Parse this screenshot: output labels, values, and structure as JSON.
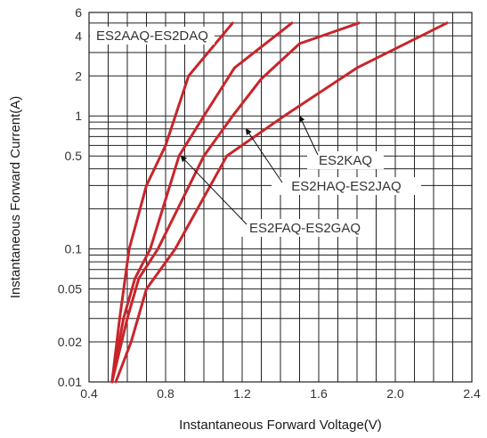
{
  "chart_data": {
    "type": "line",
    "title": "",
    "xlabel": "Instantaneous Forward Voltage(V)",
    "ylabel": "Instantaneous Forward Current(A)",
    "xlim": [
      0.4,
      2.4
    ],
    "ylim": [
      0.01,
      6
    ],
    "y_scale": "log",
    "grid": true,
    "x_ticks": [
      "0.4",
      "0.8",
      "1.2",
      "1.6",
      "2.0",
      "2.4"
    ],
    "y_ticks": [
      "0.01",
      "0.02",
      "0.05",
      "0.1",
      "0.5",
      "1",
      "2",
      "4",
      "6"
    ],
    "line_color": "#c8252b",
    "series": [
      {
        "name": "ES2AAQ-ES2DAQ",
        "points": [
          [
            0.52,
            0.01
          ],
          [
            0.56,
            0.03
          ],
          [
            0.61,
            0.1
          ],
          [
            0.7,
            0.3
          ],
          [
            0.8,
            0.6
          ],
          [
            0.92,
            2
          ],
          [
            1.15,
            5
          ]
        ]
      },
      {
        "name": "ES2FAQ-ES2GAQ",
        "points": [
          [
            0.52,
            0.01
          ],
          [
            0.58,
            0.03
          ],
          [
            0.64,
            0.06
          ],
          [
            0.72,
            0.1
          ],
          [
            0.87,
            0.5
          ],
          [
            1.0,
            1
          ],
          [
            1.16,
            2.3
          ],
          [
            1.46,
            5
          ]
        ]
      },
      {
        "name": "ES2HAQ-ES2JAQ",
        "points": [
          [
            0.52,
            0.01
          ],
          [
            0.6,
            0.03
          ],
          [
            0.66,
            0.06
          ],
          [
            0.76,
            0.1
          ],
          [
            1.0,
            0.5
          ],
          [
            1.15,
            1
          ],
          [
            1.3,
            1.9
          ],
          [
            1.5,
            3.5
          ],
          [
            1.81,
            5
          ]
        ]
      },
      {
        "name": "ES2KAQ",
        "points": [
          [
            0.54,
            0.01
          ],
          [
            0.62,
            0.02
          ],
          [
            0.7,
            0.05
          ],
          [
            0.85,
            0.1
          ],
          [
            1.12,
            0.5
          ],
          [
            1.42,
            1
          ],
          [
            1.8,
            2.3
          ],
          [
            2.27,
            5
          ]
        ]
      }
    ],
    "annotations": [
      {
        "text": "ES2AAQ-ES2DAQ",
        "series": "ES2AAQ-ES2DAQ",
        "arrow_to": [
          1.1,
          4.5
        ]
      },
      {
        "text": "ES2KAQ",
        "series": "ES2KAQ",
        "arrow_to": [
          1.5,
          1
        ]
      },
      {
        "text": "ES2HAQ-ES2JAQ",
        "series": "ES2HAQ-ES2JAQ",
        "arrow_to": [
          1.22,
          0.8
        ]
      },
      {
        "text": "ES2FAQ-ES2GAQ",
        "series": "ES2FAQ-ES2GAQ",
        "arrow_to": [
          0.88,
          0.5
        ]
      }
    ]
  }
}
